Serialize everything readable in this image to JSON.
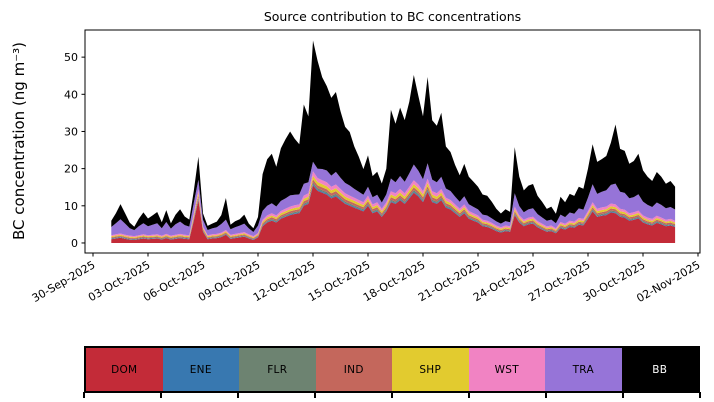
{
  "figure": {
    "background": "#ffffff"
  },
  "chart_data": {
    "type": "area",
    "stacked": true,
    "title": "Source contribution to BC concentrations",
    "xlabel": "",
    "ylabel": "BC concentration (ng m⁻³)",
    "ylim": [
      -2.7,
      57.3
    ],
    "xlim_days": [
      -0.5,
      33.1
    ],
    "grid": false,
    "legend_position": "bottom",
    "y_ticks": [
      0,
      10,
      20,
      30,
      40,
      50
    ],
    "x_tick_days": [
      0,
      3,
      6,
      9,
      12,
      15,
      18,
      21,
      24,
      27,
      30,
      33
    ],
    "x_tick_labels": [
      "30-Sep-2025",
      "03-Oct-2025",
      "06-Oct-2025",
      "09-Oct-2025",
      "12-Oct-2025",
      "15-Oct-2025",
      "18-Oct-2025",
      "21-Oct-2025",
      "24-Oct-2025",
      "27-Oct-2025",
      "30-Oct-2025",
      "02-Nov-2025"
    ],
    "x_unit": "days since 30-Sep-2025 00:00, 6-hour resolution",
    "x": [
      1,
      1.25,
      1.5,
      1.75,
      2,
      2.25,
      2.5,
      2.75,
      3,
      3.25,
      3.5,
      3.75,
      4,
      4.25,
      4.5,
      4.75,
      5,
      5.25,
      5.5,
      5.75,
      6,
      6.25,
      6.5,
      6.75,
      7,
      7.25,
      7.5,
      7.75,
      8,
      8.25,
      8.5,
      8.75,
      9,
      9.25,
      9.5,
      9.75,
      10,
      10.25,
      10.5,
      10.75,
      11,
      11.25,
      11.5,
      11.75,
      12,
      12.25,
      12.5,
      12.75,
      13,
      13.25,
      13.5,
      13.75,
      14,
      14.25,
      14.5,
      14.75,
      15,
      15.25,
      15.5,
      15.75,
      16,
      16.25,
      16.5,
      16.75,
      17,
      17.25,
      17.5,
      17.75,
      18,
      18.25,
      18.5,
      18.75,
      19,
      19.25,
      19.5,
      19.75,
      20,
      20.25,
      20.5,
      20.75,
      21,
      21.25,
      21.5,
      21.75,
      22,
      22.25,
      22.5,
      22.75,
      23,
      23.25,
      23.5,
      23.75,
      24,
      24.25,
      24.5,
      24.75,
      25,
      25.25,
      25.5,
      25.75,
      26,
      26.25,
      26.5,
      26.75,
      27,
      27.25,
      27.5,
      27.75,
      28,
      28.25,
      28.5,
      28.75,
      29,
      29.25,
      29.5,
      29.75,
      30,
      30.25,
      30.5,
      30.75,
      31,
      31.25,
      31.5,
      31.75
    ],
    "series": [
      {
        "name": "DOM",
        "color": "#c32b38",
        "values": [
          1,
          1.2,
          1.4,
          1.1,
          0.9,
          0.8,
          1,
          1.2,
          1,
          1.1,
          1.2,
          0.9,
          1.3,
          0.9,
          1.1,
          1.3,
          1.1,
          1,
          6,
          11.5,
          3,
          1,
          1.2,
          1.3,
          1.6,
          2.2,
          1.1,
          1.3,
          1.5,
          1.7,
          1.2,
          0.8,
          1.5,
          4.5,
          5.5,
          6,
          5.5,
          6.5,
          7,
          7.5,
          7.8,
          8,
          10,
          10.5,
          15.5,
          14,
          13.5,
          13,
          12,
          12.5,
          11.5,
          10.5,
          10,
          9.5,
          9,
          8.5,
          10,
          8,
          8.5,
          7,
          8.5,
          11,
          10.5,
          11.5,
          10.5,
          12,
          13.5,
          12.5,
          11,
          13.8,
          11,
          10.5,
          11.5,
          9.5,
          9,
          8,
          7,
          8,
          6.5,
          6,
          5.5,
          4.5,
          4.3,
          3.8,
          3.2,
          2.8,
          3.2,
          3,
          7.5,
          5.5,
          4.5,
          5,
          5.2,
          4.2,
          3.6,
          3,
          3.2,
          2.6,
          4,
          3.6,
          4.3,
          4.1,
          4.9,
          4.7,
          6.5,
          8.5,
          7,
          7.3,
          7.5,
          8.2,
          8,
          7,
          6.8,
          6,
          6.2,
          6.6,
          5.5,
          5,
          4.7,
          5.4,
          5,
          4.5,
          4.7,
          4.3
        ]
      },
      {
        "name": "ENE",
        "color": "#3878b0",
        "values": [
          0.12,
          0.12,
          0.12,
          0.12,
          0.11,
          0.11,
          0.12,
          0.12,
          0.12,
          0.12,
          0.12,
          0.11,
          0.12,
          0.11,
          0.12,
          0.12,
          0.12,
          0.12,
          0.19,
          0.27,
          0.15,
          0.12,
          0.12,
          0.12,
          0.12,
          0.13,
          0.12,
          0.12,
          0.12,
          0.13,
          0.12,
          0.11,
          0.12,
          0.17,
          0.18,
          0.19,
          0.18,
          0.2,
          0.21,
          0.21,
          0.22,
          0.22,
          0.25,
          0.26,
          0.33,
          0.31,
          0.3,
          0.3,
          0.28,
          0.29,
          0.27,
          0.26,
          0.25,
          0.24,
          0.24,
          0.23,
          0.25,
          0.22,
          0.23,
          0.21,
          0.23,
          0.27,
          0.26,
          0.27,
          0.26,
          0.28,
          0.3,
          0.29,
          0.27,
          0.31,
          0.27,
          0.26,
          0.27,
          0.24,
          0.24,
          0.22,
          0.21,
          0.22,
          0.2,
          0.19,
          0.18,
          0.17,
          0.16,
          0.16,
          0.15,
          0.14,
          0.15,
          0.15,
          0.21,
          0.18,
          0.17,
          0.18,
          0.18,
          0.16,
          0.15,
          0.15,
          0.15,
          0.14,
          0.16,
          0.15,
          0.16,
          0.16,
          0.17,
          0.17,
          0.2,
          0.23,
          0.21,
          0.21,
          0.21,
          0.22,
          0.22,
          0.21,
          0.2,
          0.19,
          0.19,
          0.2,
          0.18,
          0.18,
          0.17,
          0.18,
          0.18,
          0.17,
          0.17,
          0.16
        ]
      },
      {
        "name": "FLR",
        "color": "#6d8371",
        "values": [
          0.17,
          0.17,
          0.18,
          0.17,
          0.17,
          0.17,
          0.17,
          0.17,
          0.17,
          0.17,
          0.17,
          0.17,
          0.18,
          0.17,
          0.17,
          0.18,
          0.17,
          0.17,
          0.27,
          0.38,
          0.21,
          0.17,
          0.17,
          0.18,
          0.18,
          0.19,
          0.17,
          0.18,
          0.18,
          0.18,
          0.17,
          0.17,
          0.18,
          0.24,
          0.26,
          0.27,
          0.26,
          0.28,
          0.29,
          0.3,
          0.31,
          0.31,
          0.35,
          0.36,
          0.46,
          0.43,
          0.42,
          0.41,
          0.39,
          0.4,
          0.38,
          0.36,
          0.35,
          0.34,
          0.33,
          0.32,
          0.35,
          0.31,
          0.32,
          0.29,
          0.32,
          0.37,
          0.36,
          0.38,
          0.36,
          0.39,
          0.42,
          0.4,
          0.37,
          0.43,
          0.37,
          0.36,
          0.38,
          0.34,
          0.33,
          0.31,
          0.29,
          0.31,
          0.28,
          0.27,
          0.26,
          0.24,
          0.24,
          0.23,
          0.21,
          0.21,
          0.21,
          0.21,
          0.3,
          0.26,
          0.24,
          0.25,
          0.25,
          0.23,
          0.22,
          0.21,
          0.21,
          0.2,
          0.23,
          0.22,
          0.24,
          0.23,
          0.25,
          0.24,
          0.28,
          0.32,
          0.29,
          0.3,
          0.3,
          0.31,
          0.31,
          0.29,
          0.29,
          0.27,
          0.27,
          0.28,
          0.26,
          0.25,
          0.24,
          0.26,
          0.25,
          0.24,
          0.24,
          0.24
        ]
      },
      {
        "name": "IND",
        "color": "#c4675c",
        "values": [
          0.24,
          0.25,
          0.26,
          0.24,
          0.24,
          0.23,
          0.24,
          0.25,
          0.24,
          0.24,
          0.25,
          0.24,
          0.25,
          0.24,
          0.24,
          0.25,
          0.24,
          0.24,
          0.44,
          0.66,
          0.32,
          0.24,
          0.25,
          0.25,
          0.26,
          0.29,
          0.24,
          0.25,
          0.26,
          0.27,
          0.25,
          0.23,
          0.26,
          0.38,
          0.42,
          0.44,
          0.42,
          0.46,
          0.48,
          0.5,
          0.51,
          0.52,
          0.6,
          0.62,
          0.82,
          0.76,
          0.74,
          0.72,
          0.68,
          0.7,
          0.66,
          0.62,
          0.6,
          0.58,
          0.56,
          0.54,
          0.6,
          0.52,
          0.54,
          0.48,
          0.54,
          0.64,
          0.62,
          0.66,
          0.62,
          0.68,
          0.74,
          0.7,
          0.64,
          0.75,
          0.64,
          0.62,
          0.66,
          0.58,
          0.56,
          0.52,
          0.48,
          0.52,
          0.46,
          0.44,
          0.42,
          0.38,
          0.37,
          0.35,
          0.33,
          0.31,
          0.33,
          0.32,
          0.5,
          0.42,
          0.38,
          0.4,
          0.41,
          0.37,
          0.34,
          0.32,
          0.33,
          0.3,
          0.36,
          0.34,
          0.37,
          0.36,
          0.4,
          0.39,
          0.46,
          0.54,
          0.48,
          0.49,
          0.5,
          0.53,
          0.52,
          0.48,
          0.47,
          0.44,
          0.45,
          0.46,
          0.42,
          0.4,
          0.39,
          0.42,
          0.4,
          0.38,
          0.39,
          0.37
        ]
      },
      {
        "name": "SHP",
        "color": "#e2cb2f",
        "values": [
          0.25,
          0.26,
          0.27,
          0.26,
          0.25,
          0.24,
          0.25,
          0.26,
          0.25,
          0.26,
          0.26,
          0.25,
          0.27,
          0.25,
          0.26,
          0.27,
          0.26,
          0.25,
          0.5,
          0.78,
          0.35,
          0.25,
          0.26,
          0.27,
          0.28,
          0.31,
          0.26,
          0.27,
          0.28,
          0.29,
          0.26,
          0.24,
          0.28,
          0.43,
          0.48,
          0.5,
          0.48,
          0.53,
          0.55,
          0.58,
          0.59,
          0.6,
          0.7,
          0.73,
          0.98,
          0.9,
          0.88,
          0.85,
          0.8,
          0.83,
          0.78,
          0.73,
          0.7,
          0.68,
          0.65,
          0.63,
          0.7,
          0.6,
          0.63,
          0.55,
          0.63,
          0.75,
          0.73,
          0.78,
          0.73,
          0.8,
          0.88,
          0.83,
          0.75,
          0.89,
          0.75,
          0.73,
          0.78,
          0.68,
          0.65,
          0.6,
          0.55,
          0.6,
          0.53,
          0.5,
          0.48,
          0.43,
          0.42,
          0.39,
          0.36,
          0.34,
          0.36,
          0.35,
          0.58,
          0.48,
          0.43,
          0.45,
          0.46,
          0.41,
          0.38,
          0.35,
          0.36,
          0.33,
          0.4,
          0.38,
          0.42,
          0.41,
          0.45,
          0.44,
          0.53,
          0.63,
          0.55,
          0.57,
          0.58,
          0.61,
          0.6,
          0.55,
          0.54,
          0.5,
          0.51,
          0.53,
          0.48,
          0.45,
          0.44,
          0.47,
          0.45,
          0.43,
          0.44,
          0.42
        ]
      },
      {
        "name": "WST",
        "color": "#f183c3",
        "values": [
          0.31,
          0.32,
          0.33,
          0.32,
          0.3,
          0.3,
          0.31,
          0.32,
          0.31,
          0.32,
          0.32,
          0.3,
          0.33,
          0.3,
          0.32,
          0.33,
          0.32,
          0.31,
          0.61,
          0.94,
          0.43,
          0.31,
          0.32,
          0.33,
          0.35,
          0.38,
          0.32,
          0.33,
          0.34,
          0.35,
          0.32,
          0.3,
          0.34,
          0.52,
          0.58,
          0.61,
          0.58,
          0.64,
          0.67,
          0.7,
          0.72,
          0.73,
          0.85,
          0.88,
          1.18,
          1.09,
          1.06,
          1.03,
          0.97,
          1,
          0.94,
          0.88,
          0.85,
          0.82,
          0.79,
          0.76,
          0.85,
          0.73,
          0.76,
          0.67,
          0.76,
          0.91,
          0.88,
          0.94,
          0.88,
          0.97,
          1.06,
          1,
          0.91,
          1.08,
          0.91,
          0.88,
          0.94,
          0.82,
          0.79,
          0.73,
          0.67,
          0.73,
          0.64,
          0.61,
          0.58,
          0.52,
          0.51,
          0.48,
          0.44,
          0.42,
          0.44,
          0.43,
          0.7,
          0.58,
          0.52,
          0.55,
          0.56,
          0.5,
          0.47,
          0.43,
          0.44,
          0.41,
          0.49,
          0.47,
          0.51,
          0.5,
          0.54,
          0.53,
          0.64,
          0.76,
          0.67,
          0.69,
          0.7,
          0.74,
          0.73,
          0.67,
          0.66,
          0.61,
          0.62,
          0.65,
          0.58,
          0.55,
          0.53,
          0.57,
          0.55,
          0.52,
          0.53,
          0.51
        ]
      },
      {
        "name": "TRA",
        "color": "#9674d8",
        "values": [
          2.2,
          3,
          3.8,
          3,
          2,
          1.6,
          2.4,
          3,
          2.4,
          2.7,
          3,
          2,
          3.2,
          1.9,
          2.8,
          3.3,
          2.6,
          2.3,
          2.8,
          2.5,
          1.8,
          1.4,
          1.6,
          1.8,
          2.3,
          2.8,
          1.5,
          1.8,
          2,
          2.3,
          1.6,
          1.1,
          2,
          2.4,
          2.6,
          2.7,
          2.4,
          2.7,
          2.8,
          3,
          2.8,
          2.7,
          3.2,
          3,
          2.6,
          2.5,
          3,
          3.2,
          3,
          3.4,
          3,
          2.8,
          2.7,
          2.4,
          2.2,
          2,
          2.4,
          1.9,
          2,
          1.7,
          2.1,
          3.4,
          3,
          3.5,
          3.1,
          3.6,
          4.2,
          3.7,
          3.2,
          4.2,
          3.1,
          3,
          3.3,
          2.5,
          2.4,
          2.1,
          1.9,
          2.2,
          1.8,
          1.7,
          1.6,
          1.4,
          1.4,
          1.2,
          1.1,
          1,
          1.2,
          1.1,
          3.6,
          2.5,
          2,
          2.2,
          2.3,
          1.9,
          1.7,
          1.5,
          1.6,
          1.3,
          2,
          1.8,
          2.2,
          2.1,
          2.6,
          2.5,
          3.6,
          4.8,
          4,
          4.2,
          4.4,
          5,
          5.6,
          4.6,
          4.5,
          4,
          4.1,
          4.4,
          3.7,
          3.4,
          3.2,
          3.6,
          3.4,
          3.1,
          3.2,
          3
        ]
      },
      {
        "name": "BB",
        "color": "#000000",
        "values": [
          1.7,
          2.7,
          4.1,
          2.8,
          1.5,
          0.9,
          2,
          2.9,
          2.1,
          2.5,
          3,
          1.6,
          3.2,
          1.4,
          2.6,
          3.3,
          2.3,
          1.9,
          3.2,
          6.2,
          1.7,
          1.1,
          1.3,
          1.5,
          2.4,
          5.8,
          1.2,
          1.6,
          1.7,
          2.4,
          1.3,
          1,
          2.3,
          9.9,
          12.5,
          13.3,
          10.7,
          14.2,
          15.9,
          17.2,
          15.1,
          13.5,
          21.3,
          17.7,
          32.6,
          29,
          24.7,
          22.7,
          20.9,
          21.5,
          17.9,
          15.1,
          14.4,
          11.4,
          9.4,
          6.9,
          8.4,
          5.7,
          6.2,
          5.1,
          6.9,
          18.5,
          15.7,
          18.4,
          16.6,
          19.3,
          24.1,
          20.1,
          16.9,
          23.2,
          16,
          15.2,
          17.2,
          11.3,
          10.5,
          8.5,
          7.1,
          8.7,
          7.4,
          6.8,
          6.1,
          5.4,
          5.3,
          4.5,
          3.4,
          2.7,
          3.2,
          2.8,
          12.4,
          7.9,
          5.9,
          6.4,
          6.5,
          4.9,
          4.2,
          3.2,
          3.5,
          2.6,
          4.8,
          4,
          5,
          4.8,
          5.8,
          5.6,
          7.8,
          10.8,
          8.6,
          8.8,
          9.2,
          11.4,
          15.9,
          11.5,
          11.3,
          9.3,
          9.7,
          10.9,
          8.4,
          7.6,
          7,
          8.2,
          7.6,
          6.6,
          7,
          6.1
        ]
      }
    ]
  },
  "legend": {
    "items": [
      {
        "label": "DOM",
        "color": "#c32b38",
        "text_color": "#000000"
      },
      {
        "label": "ENE",
        "color": "#3878b0",
        "text_color": "#000000"
      },
      {
        "label": "FLR",
        "color": "#6d8371",
        "text_color": "#000000"
      },
      {
        "label": "IND",
        "color": "#c4675c",
        "text_color": "#000000"
      },
      {
        "label": "SHP",
        "color": "#e2cb2f",
        "text_color": "#000000"
      },
      {
        "label": "WST",
        "color": "#f183c3",
        "text_color": "#000000"
      },
      {
        "label": "TRA",
        "color": "#9674d8",
        "text_color": "#000000"
      },
      {
        "label": "BB",
        "color": "#000000",
        "text_color": "#ffffff"
      }
    ]
  }
}
